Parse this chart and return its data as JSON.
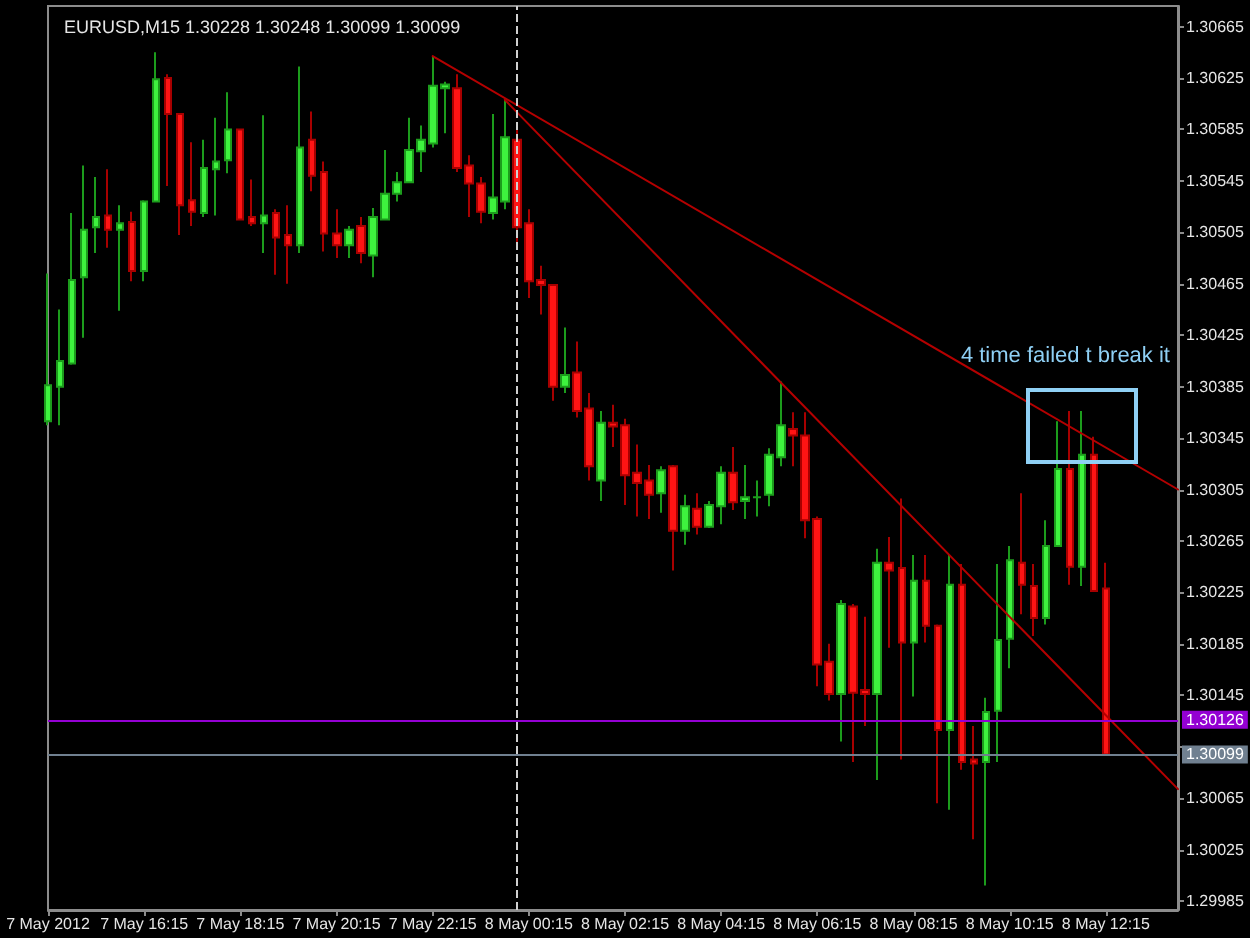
{
  "chart_data": {
    "type": "candlestick",
    "title": "EURUSD,M15 1.30228 1.30248 1.30099 1.30099",
    "x": [
      "2012-05-07T14:15",
      "2012-05-07T14:30",
      "2012-05-07T14:45",
      "2012-05-07T15:00",
      "2012-05-07T15:15",
      "2012-05-07T15:30",
      "2012-05-07T15:45",
      "2012-05-07T16:00",
      "2012-05-07T16:15",
      "2012-05-07T16:30",
      "2012-05-07T16:45",
      "2012-05-07T17:00",
      "2012-05-07T17:15",
      "2012-05-07T17:30",
      "2012-05-07T17:45",
      "2012-05-07T18:00",
      "2012-05-07T18:15",
      "2012-05-07T18:30",
      "2012-05-07T18:45",
      "2012-05-07T19:00",
      "2012-05-07T19:15",
      "2012-05-07T19:30",
      "2012-05-07T19:45",
      "2012-05-07T20:00",
      "2012-05-07T20:15",
      "2012-05-07T20:30",
      "2012-05-07T20:45",
      "2012-05-07T21:00",
      "2012-05-07T21:15",
      "2012-05-07T21:30",
      "2012-05-07T21:45",
      "2012-05-07T22:00",
      "2012-05-07T22:15",
      "2012-05-07T22:30",
      "2012-05-07T22:45",
      "2012-05-07T23:00",
      "2012-05-07T23:15",
      "2012-05-07T23:30",
      "2012-05-07T23:45",
      "2012-05-08T00:00",
      "2012-05-08T00:15",
      "2012-05-08T00:30",
      "2012-05-08T00:45",
      "2012-05-08T01:00",
      "2012-05-08T01:15",
      "2012-05-08T01:30",
      "2012-05-08T01:45",
      "2012-05-08T02:00",
      "2012-05-08T02:15",
      "2012-05-08T02:30",
      "2012-05-08T02:45",
      "2012-05-08T03:00",
      "2012-05-08T03:15",
      "2012-05-08T03:30",
      "2012-05-08T03:45",
      "2012-05-08T04:00",
      "2012-05-08T04:15",
      "2012-05-08T04:30",
      "2012-05-08T04:45",
      "2012-05-08T05:00",
      "2012-05-08T05:15",
      "2012-05-08T05:30",
      "2012-05-08T05:45",
      "2012-05-08T06:00",
      "2012-05-08T06:15",
      "2012-05-08T06:30",
      "2012-05-08T06:45",
      "2012-05-08T07:00",
      "2012-05-08T07:15",
      "2012-05-08T07:30",
      "2012-05-08T07:45",
      "2012-05-08T08:00",
      "2012-05-08T08:15",
      "2012-05-08T08:30",
      "2012-05-08T08:45",
      "2012-05-08T09:00",
      "2012-05-08T09:15",
      "2012-05-08T09:30",
      "2012-05-08T09:45",
      "2012-05-08T10:00",
      "2012-05-08T10:15",
      "2012-05-08T10:30",
      "2012-05-08T10:45",
      "2012-05-08T11:00",
      "2012-05-08T11:15",
      "2012-05-08T11:30",
      "2012-05-08T11:45",
      "2012-05-08T12:00",
      "2012-05-08T12:15"
    ],
    "ohlc": [
      [
        1.30358,
        1.30473,
        1.30355,
        1.30386
      ],
      [
        1.30385,
        1.30445,
        1.30355,
        1.30405
      ],
      [
        1.30403,
        1.3052,
        1.30402,
        1.30468
      ],
      [
        1.3047,
        1.30557,
        1.30423,
        1.30507
      ],
      [
        1.30509,
        1.30548,
        1.30489,
        1.30517
      ],
      [
        1.30518,
        1.30554,
        1.30493,
        1.30507
      ],
      [
        1.30507,
        1.30526,
        1.30444,
        1.30512
      ],
      [
        1.30513,
        1.30521,
        1.30467,
        1.30475
      ],
      [
        1.30475,
        1.3053,
        1.30467,
        1.30529
      ],
      [
        1.30529,
        1.30645,
        1.30529,
        1.30624
      ],
      [
        1.30625,
        1.30628,
        1.30541,
        1.30597
      ],
      [
        1.30597,
        1.30597,
        1.30503,
        1.30526
      ],
      [
        1.3053,
        1.30575,
        1.3051,
        1.30521
      ],
      [
        1.3052,
        1.30577,
        1.30517,
        1.30555
      ],
      [
        1.30554,
        1.30594,
        1.30518,
        1.3056
      ],
      [
        1.30561,
        1.30614,
        1.30551,
        1.30585
      ],
      [
        1.30585,
        1.30585,
        1.30515,
        1.30515
      ],
      [
        1.30517,
        1.30546,
        1.3051,
        1.30512
      ],
      [
        1.30512,
        1.30596,
        1.30489,
        1.30518
      ],
      [
        1.3052,
        1.30523,
        1.30472,
        1.30501
      ],
      [
        1.30503,
        1.30526,
        1.30465,
        1.30495
      ],
      [
        1.30495,
        1.30634,
        1.30489,
        1.30571
      ],
      [
        1.30577,
        1.30599,
        1.30537,
        1.30549
      ],
      [
        1.30552,
        1.3056,
        1.3049,
        1.30504
      ],
      [
        1.30504,
        1.30523,
        1.30485,
        1.30495
      ],
      [
        1.30495,
        1.3051,
        1.30485,
        1.30507
      ],
      [
        1.3051,
        1.30517,
        1.30481,
        1.30489
      ],
      [
        1.30487,
        1.30524,
        1.3047,
        1.30517
      ],
      [
        1.30515,
        1.30569,
        1.30515,
        1.30535
      ],
      [
        1.30535,
        1.30552,
        1.30529,
        1.30544
      ],
      [
        1.30544,
        1.30594,
        1.30544,
        1.30569
      ],
      [
        1.30568,
        1.30588,
        1.30552,
        1.30577
      ],
      [
        1.30574,
        1.30642,
        1.30571,
        1.30619
      ],
      [
        1.30617,
        1.30622,
        1.30582,
        1.3062
      ],
      [
        1.30617,
        1.30628,
        1.30552,
        1.30555
      ],
      [
        1.30557,
        1.30565,
        1.30517,
        1.30543
      ],
      [
        1.30543,
        1.30548,
        1.30512,
        1.30521
      ],
      [
        1.3052,
        1.30597,
        1.30515,
        1.30532
      ],
      [
        1.30529,
        1.30608,
        1.30523,
        1.30579
      ],
      [
        1.30577,
        1.30588,
        1.30496,
        1.30509
      ],
      [
        1.30512,
        1.30523,
        1.30454,
        1.30467
      ],
      [
        1.30468,
        1.30479,
        1.30441,
        1.30464
      ],
      [
        1.30464,
        1.30464,
        1.30374,
        1.30385
      ],
      [
        1.30385,
        1.30431,
        1.3038,
        1.30394
      ],
      [
        1.30396,
        1.3042,
        1.30361,
        1.30366
      ],
      [
        1.30368,
        1.3038,
        1.30312,
        1.30323
      ],
      [
        1.30312,
        1.30366,
        1.30296,
        1.30357
      ],
      [
        1.30357,
        1.30371,
        1.30338,
        1.30354
      ],
      [
        1.30355,
        1.3036,
        1.30293,
        1.30316
      ],
      [
        1.30318,
        1.3034,
        1.30284,
        1.3031
      ],
      [
        1.30312,
        1.30324,
        1.30282,
        1.30301
      ],
      [
        1.30302,
        1.30323,
        1.30287,
        1.3032
      ],
      [
        1.30323,
        1.30324,
        1.30242,
        1.30273
      ],
      [
        1.30273,
        1.30301,
        1.30262,
        1.30292
      ],
      [
        1.3029,
        1.30302,
        1.3027,
        1.30276
      ],
      [
        1.30276,
        1.30296,
        1.30275,
        1.30293
      ],
      [
        1.30292,
        1.30323,
        1.30278,
        1.30318
      ],
      [
        1.30318,
        1.30338,
        1.30289,
        1.30295
      ],
      [
        1.30296,
        1.30324,
        1.30282,
        1.30299
      ],
      [
        1.30299,
        1.30312,
        1.30284,
        1.30299
      ],
      [
        1.30301,
        1.30337,
        1.30292,
        1.30332
      ],
      [
        1.3033,
        1.30389,
        1.30323,
        1.30355
      ],
      [
        1.30352,
        1.30365,
        1.30323,
        1.30347
      ],
      [
        1.30347,
        1.30365,
        1.30267,
        1.30281
      ],
      [
        1.30282,
        1.30284,
        1.30152,
        1.30169
      ],
      [
        1.30171,
        1.30185,
        1.30141,
        1.30146
      ],
      [
        1.30146,
        1.30219,
        1.30109,
        1.30216
      ],
      [
        1.30214,
        1.30216,
        1.30093,
        1.30147
      ],
      [
        1.30149,
        1.30206,
        1.30121,
        1.30146
      ],
      [
        1.30146,
        1.30259,
        1.30079,
        1.30248
      ],
      [
        1.30248,
        1.30268,
        1.30182,
        1.30242
      ],
      [
        1.30244,
        1.30298,
        1.30095,
        1.30186
      ],
      [
        1.30186,
        1.30254,
        1.30144,
        1.30234
      ],
      [
        1.30234,
        1.30254,
        1.30186,
        1.30199
      ],
      [
        1.30199,
        1.302,
        1.30061,
        1.30118
      ],
      [
        1.30118,
        1.30254,
        1.30056,
        1.30231
      ],
      [
        1.30231,
        1.30247,
        1.30087,
        1.30093
      ],
      [
        1.30095,
        1.30121,
        1.30033,
        1.30092
      ],
      [
        1.30093,
        1.30143,
        1.29997,
        1.30132
      ],
      [
        1.30133,
        1.30247,
        1.30093,
        1.30188
      ],
      [
        1.30189,
        1.30261,
        1.30166,
        1.3025
      ],
      [
        1.30248,
        1.30302,
        1.30208,
        1.30231
      ],
      [
        1.3023,
        1.30247,
        1.30191,
        1.30205
      ],
      [
        1.30205,
        1.30281,
        1.302,
        1.30261
      ],
      [
        1.30261,
        1.30358,
        1.30261,
        1.30321
      ],
      [
        1.30321,
        1.30366,
        1.30231,
        1.30245
      ],
      [
        1.30245,
        1.30366,
        1.3023,
        1.30332
      ],
      [
        1.30332,
        1.30346,
        1.30226,
        1.30226
      ],
      [
        1.30228,
        1.30248,
        1.30099,
        1.30099
      ]
    ],
    "series": [
      {
        "type": "line",
        "color": "#b40000",
        "x": [
          "2012-05-07T22:15",
          "2012-05-08T13:45"
        ],
        "values": [
          1.30642,
          1.30305
        ]
      },
      {
        "type": "line",
        "color": "#b40000",
        "x": [
          "2012-05-07T23:45",
          "2012-05-08T13:45"
        ],
        "values": [
          1.30608,
          1.30072
        ]
      }
    ],
    "xlim": [
      "2012-05-07T14:15",
      "2012-05-08T13:45"
    ],
    "xticks": [
      {
        "value": "2012-05-07T14:15",
        "label": "7 May 2012"
      },
      {
        "value": "2012-05-07T16:15",
        "label": "7 May 16:15"
      },
      {
        "value": "2012-05-07T18:15",
        "label": "7 May 18:15"
      },
      {
        "value": "2012-05-07T20:15",
        "label": "7 May 20:15"
      },
      {
        "value": "2012-05-07T22:15",
        "label": "7 May 22:15"
      },
      {
        "value": "2012-05-08T00:15",
        "label": "8 May 00:15"
      },
      {
        "value": "2012-05-08T02:15",
        "label": "8 May 02:15"
      },
      {
        "value": "2012-05-08T04:15",
        "label": "8 May 04:15"
      },
      {
        "value": "2012-05-08T06:15",
        "label": "8 May 06:15"
      },
      {
        "value": "2012-05-08T08:15",
        "label": "8 May 08:15"
      },
      {
        "value": "2012-05-08T10:15",
        "label": "8 May 10:15"
      },
      {
        "value": "2012-05-08T12:15",
        "label": "8 May 12:15"
      }
    ],
    "ylim": [
      1.29978,
      1.30681
    ],
    "yticks": [
      1.29985,
      1.30025,
      1.30065,
      {
        "value": 1.30105,
        "label": null
      },
      1.30145,
      1.30185,
      1.30225,
      1.30265,
      1.30305,
      1.30345,
      1.30385,
      1.30425,
      1.30465,
      1.30505,
      1.30545,
      1.30585,
      1.30625,
      1.30665
    ],
    "ref_lines": [
      {
        "axis": "y",
        "value": 1.30126,
        "label": "1.30126",
        "color": "#9400d3"
      },
      {
        "axis": "y",
        "value": 1.30099,
        "label": "1.30099",
        "color": "#708090"
      },
      {
        "axis": "x",
        "value": "2012-05-08T00:00",
        "color": "#d0d0d0",
        "line_style": "dashed"
      }
    ],
    "annotations": [
      {
        "text": "4 time failed t break it",
        "x": "2012-05-08T11:45",
        "y": 1.30355
      }
    ]
  }
}
